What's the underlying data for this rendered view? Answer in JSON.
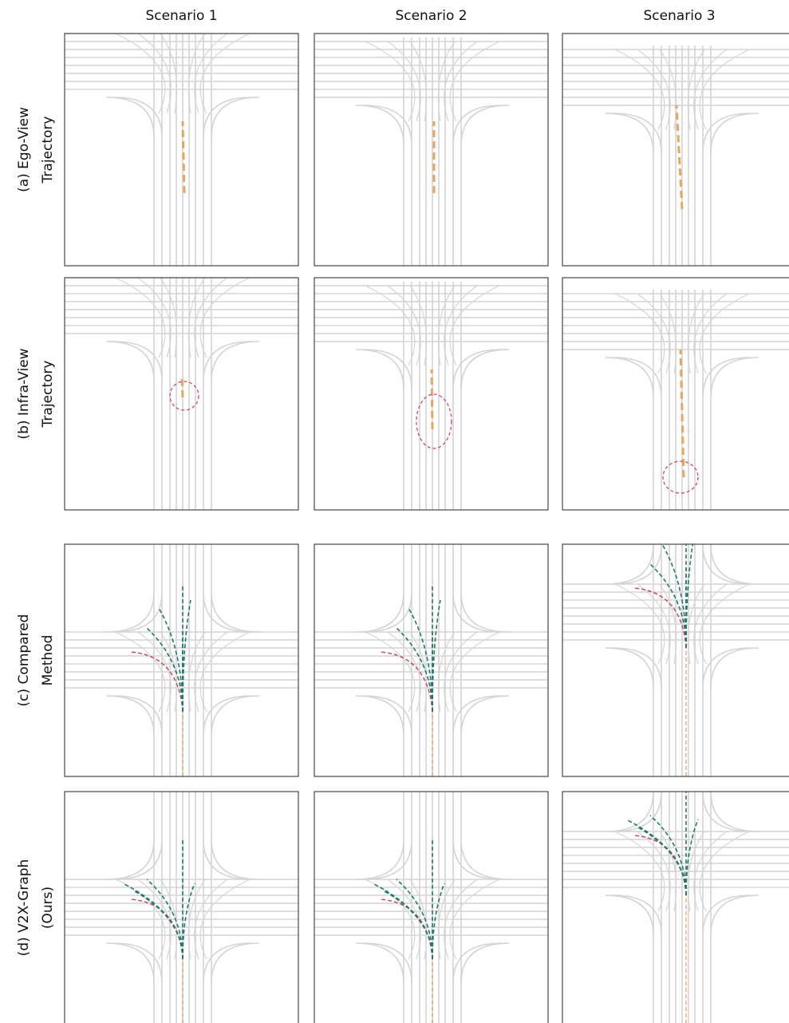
{
  "columns": [
    "Scenario 1",
    "Scenario 2",
    "Scenario 3"
  ],
  "rows": [
    {
      "label": [
        "(a) Ego-View",
        "Trajectory"
      ]
    },
    {
      "label": [
        "(b) Infra-View",
        "Trajectory"
      ]
    },
    {
      "label": [
        "(c) Compared",
        "Method"
      ]
    },
    {
      "label": [
        "(d) V2X-Graph",
        "(Ours)"
      ]
    }
  ]
}
